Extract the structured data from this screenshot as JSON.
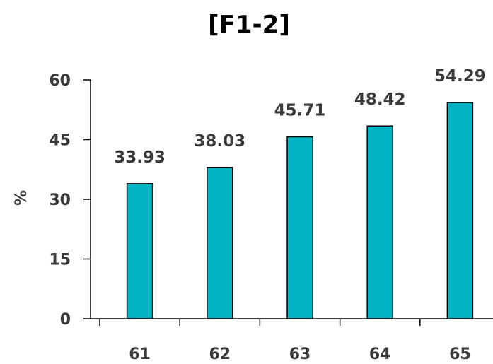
{
  "chart_data": {
    "type": "bar",
    "title": "[F1-2]",
    "ylabel": "%",
    "xlabel": "",
    "categories": [
      "61",
      "62",
      "63",
      "64",
      "65"
    ],
    "values": [
      33.93,
      38.03,
      45.71,
      48.42,
      54.29
    ],
    "data_labels": [
      "33.93",
      "38.03",
      "45.71",
      "48.42",
      "54.29"
    ],
    "ylim": [
      0,
      60
    ],
    "yticks": [
      "0",
      "15",
      "30",
      "45",
      "60"
    ],
    "grid": false,
    "legend": "none",
    "bar_color": "#00b4c4",
    "bar_edge_color": "#000000"
  }
}
